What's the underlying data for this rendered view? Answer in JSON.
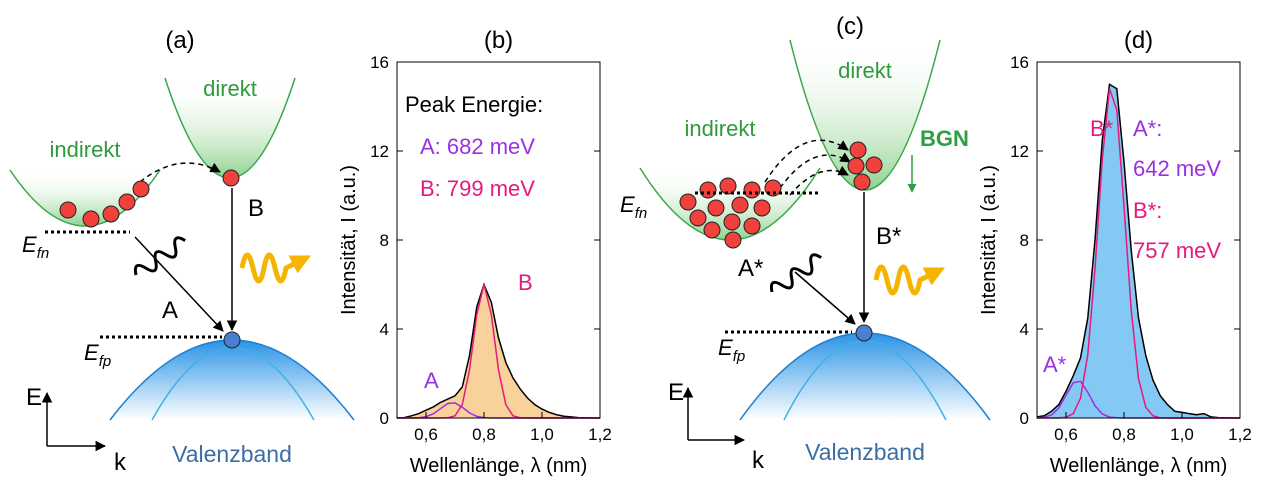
{
  "diagram_a": {
    "label": "(a)",
    "direct": "direkt",
    "indirect": "indirekt",
    "transition_b": "B",
    "transition_a": "A",
    "efn": {
      "main": "E",
      "sub": "fn"
    },
    "efp": {
      "main": "E",
      "sub": "fp"
    },
    "e_axis": "E",
    "k_axis": "k",
    "valence": "Valenzband"
  },
  "diagram_c": {
    "label": "(c)",
    "direct": "direkt",
    "indirect": "indirekt",
    "bgn": "BGN",
    "transition_b": "B*",
    "transition_a": "A*",
    "efn": {
      "main": "E",
      "sub": "fn"
    },
    "efp": {
      "main": "E",
      "sub": "fp"
    },
    "e_axis": "E",
    "k_axis": "k",
    "valence": "Valenzband"
  },
  "chart_data": [
    {
      "type": "line",
      "title": "(b)",
      "xlabel": "Wellenlänge, λ (nm)",
      "ylabel": "Intensität, I (a.u.)",
      "xlim": [
        0.5,
        1.2
      ],
      "ylim": [
        0,
        16
      ],
      "xticks": [
        {
          "value": 0.6,
          "label": "0,6"
        },
        {
          "value": 0.8,
          "label": "0,8"
        },
        {
          "value": 1.0,
          "label": "1,0"
        },
        {
          "value": 1.2,
          "label": "1,2"
        }
      ],
      "yticks": [
        0,
        4,
        8,
        12,
        16
      ],
      "annotations": [
        "Peak Energie:",
        "A: 682 meV",
        "B: 799 meV"
      ],
      "x": [
        0.5,
        0.525,
        0.55,
        0.575,
        0.6,
        0.625,
        0.65,
        0.675,
        0.7,
        0.725,
        0.75,
        0.775,
        0.8,
        0.825,
        0.85,
        0.875,
        0.9,
        0.925,
        0.95,
        0.975,
        1.0,
        1.025,
        1.05,
        1.075,
        1.1,
        1.125,
        1.15,
        1.175,
        1.2
      ],
      "series": [
        {
          "color": "#000000",
          "fill": "#f7c98a",
          "values": [
            0,
            0.02,
            0.1,
            0.2,
            0.35,
            0.5,
            0.7,
            0.85,
            1.0,
            1.4,
            2.8,
            5.0,
            6.0,
            5.2,
            3.6,
            2.5,
            1.8,
            1.3,
            0.9,
            0.6,
            0.4,
            0.25,
            0.15,
            0.08,
            0.05,
            0.02,
            0.01,
            0,
            0
          ]
        },
        {
          "name": "A",
          "color": "#9b30e0",
          "values": [
            0,
            0,
            0,
            0.01,
            0.06,
            0.19,
            0.42,
            0.65,
            0.68,
            0.48,
            0.23,
            0.07,
            0.02,
            0,
            0,
            0,
            0,
            0,
            0,
            0,
            0,
            0,
            0,
            0,
            0,
            0,
            0,
            0,
            0
          ]
        },
        {
          "name": "B",
          "color": "#e6197e",
          "values": [
            0,
            0,
            0,
            0,
            0,
            0,
            0,
            0.01,
            0.1,
            0.6,
            2.16,
            4.65,
            6.0,
            4.65,
            2.16,
            0.6,
            0.1,
            0.01,
            0,
            0,
            0,
            0,
            0,
            0,
            0,
            0,
            0,
            0,
            0
          ]
        }
      ]
    },
    {
      "type": "line",
      "title": "(d)",
      "xlabel": "Wellenlänge, λ (nm)",
      "ylabel": "Intensität, I (a.u.)",
      "xlim": [
        0.5,
        1.2
      ],
      "ylim": [
        0,
        16
      ],
      "xticks": [
        {
          "value": 0.6,
          "label": "0,6"
        },
        {
          "value": 0.8,
          "label": "0,8"
        },
        {
          "value": 1.0,
          "label": "1,0"
        },
        {
          "value": 1.2,
          "label": "1,2"
        }
      ],
      "yticks": [
        0,
        4,
        8,
        12,
        16
      ],
      "annotations": [
        "A*:",
        "642 meV",
        "B*:",
        "757 meV"
      ],
      "x": [
        0.5,
        0.525,
        0.55,
        0.575,
        0.6,
        0.625,
        0.65,
        0.675,
        0.7,
        0.725,
        0.75,
        0.775,
        0.8,
        0.825,
        0.85,
        0.875,
        0.9,
        0.925,
        0.95,
        0.975,
        1.0,
        1.025,
        1.05,
        1.075,
        1.1,
        1.125,
        1.15,
        1.175,
        1.2
      ],
      "series": [
        {
          "color": "#000000",
          "fill": "#6ec0f2",
          "values": [
            0.05,
            0.1,
            0.3,
            0.6,
            1.2,
            1.9,
            2.7,
            4.5,
            8.0,
            12.5,
            15.0,
            14.8,
            11.5,
            7.5,
            4.5,
            2.8,
            1.7,
            1.0,
            0.6,
            0.3,
            0.25,
            0.2,
            0.15,
            0.2,
            0.05,
            0.02,
            0.01,
            0,
            0
          ]
        },
        {
          "name": "A*",
          "color": "#9b30e0",
          "values": [
            0,
            0.03,
            0.14,
            0.45,
            1.03,
            1.58,
            1.65,
            1.16,
            0.55,
            0.18,
            0.04,
            0.01,
            0,
            0,
            0,
            0,
            0,
            0,
            0,
            0,
            0,
            0,
            0,
            0,
            0,
            0,
            0,
            0,
            0
          ]
        },
        {
          "name": "B*",
          "color": "#e6197e",
          "values": [
            0,
            0,
            0,
            0,
            0.03,
            0.2,
            0.89,
            2.85,
            6.7,
            11.65,
            14.8,
            13.85,
            9.5,
            4.8,
            1.77,
            0.48,
            0.1,
            0.01,
            0,
            0,
            0,
            0,
            0,
            0,
            0,
            0,
            0,
            0,
            0
          ]
        }
      ]
    }
  ]
}
